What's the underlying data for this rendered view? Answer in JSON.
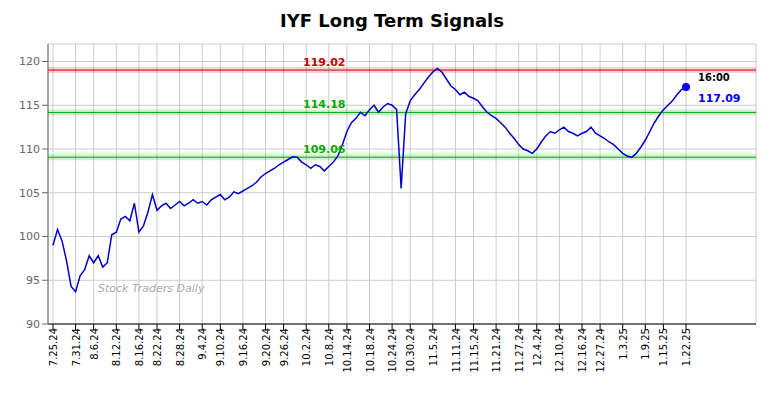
{
  "chart_data": {
    "type": "line",
    "title": "IYF Long Term Signals",
    "color": "#0000cc",
    "grid": true,
    "ylim": [
      90,
      122
    ],
    "yticks": [
      90,
      95,
      100,
      105,
      110,
      115,
      120
    ],
    "categories": [
      "7.25.24",
      null,
      null,
      null,
      null,
      "7.31.24",
      null,
      null,
      null,
      "8.6.24",
      null,
      null,
      null,
      null,
      "8.12.24",
      null,
      null,
      null,
      null,
      "8.16.24",
      null,
      null,
      null,
      "8.22.24",
      null,
      null,
      null,
      null,
      "8.28.24",
      null,
      null,
      null,
      null,
      "9.4.24",
      null,
      null,
      null,
      "9.10.24",
      null,
      null,
      null,
      null,
      "9.16.24",
      null,
      null,
      null,
      null,
      "9.20.24",
      null,
      null,
      null,
      "9.26.24",
      null,
      null,
      null,
      null,
      "10.2.24",
      null,
      null,
      null,
      null,
      "10.8.24",
      null,
      null,
      null,
      "10.14.24",
      null,
      null,
      null,
      null,
      "10.18.24",
      null,
      null,
      null,
      null,
      "10.24.24",
      null,
      null,
      null,
      "10.30.24",
      null,
      null,
      null,
      null,
      "11.5.24",
      null,
      null,
      null,
      null,
      "11.11.24",
      null,
      null,
      null,
      "11.15.24",
      null,
      null,
      null,
      null,
      "11.21.24",
      null,
      null,
      null,
      null,
      "11.27.24",
      null,
      null,
      null,
      "12.4.24",
      null,
      null,
      null,
      null,
      "12.10.24",
      null,
      null,
      null,
      null,
      "12.16.24",
      null,
      null,
      null,
      "12.27.24",
      null,
      null,
      null,
      null,
      "1.3.25",
      null,
      null,
      null,
      null,
      "1.9.25",
      null,
      null,
      null,
      "1.15.25",
      null,
      null,
      null,
      null,
      "1.22.25"
    ],
    "values": [
      99.0,
      100.8,
      99.5,
      97.2,
      94.3,
      93.7,
      95.5,
      96.2,
      97.8,
      97.0,
      97.8,
      96.5,
      97.0,
      100.2,
      100.5,
      102.0,
      102.3,
      101.8,
      103.8,
      100.5,
      101.2,
      102.8,
      104.8,
      103.0,
      103.5,
      103.8,
      103.2,
      103.6,
      104.0,
      103.5,
      103.8,
      104.2,
      103.8,
      104.0,
      103.6,
      104.2,
      104.5,
      104.8,
      104.2,
      104.5,
      105.1,
      104.9,
      105.2,
      105.5,
      105.8,
      106.2,
      106.8,
      107.2,
      107.5,
      107.8,
      108.2,
      108.5,
      108.8,
      109.1,
      109.05,
      108.5,
      108.2,
      107.8,
      108.2,
      108.0,
      107.5,
      108.0,
      108.5,
      109.2,
      110.5,
      112.0,
      113.0,
      113.5,
      114.2,
      113.8,
      114.5,
      115.0,
      114.2,
      114.8,
      115.2,
      115.0,
      114.5,
      105.5,
      114.0,
      115.5,
      116.2,
      116.8,
      117.5,
      118.2,
      118.8,
      119.2,
      118.8,
      118.0,
      117.2,
      116.8,
      116.2,
      116.5,
      116.0,
      115.8,
      115.5,
      114.8,
      114.2,
      113.8,
      113.5,
      113.0,
      112.5,
      111.8,
      111.2,
      110.5,
      110.0,
      109.8,
      109.5,
      110.0,
      110.8,
      111.5,
      112.0,
      111.8,
      112.2,
      112.5,
      112.0,
      111.8,
      111.5,
      111.8,
      112.0,
      112.5,
      111.8,
      111.5,
      111.2,
      110.8,
      110.5,
      110.0,
      109.5,
      109.2,
      109.05,
      109.5,
      110.2,
      111.0,
      112.0,
      113.0,
      113.8,
      114.5,
      115.0,
      115.5,
      116.2,
      116.8,
      117.09
    ],
    "reference_lines": [
      {
        "value": 119.02,
        "label": "119.02",
        "color": "#cc0000"
      },
      {
        "value": 114.18,
        "label": "114.18",
        "color": "#00aa00"
      },
      {
        "value": 109.06,
        "label": "109.06",
        "color": "#00aa00"
      }
    ],
    "last_label": "16:00",
    "last_value_label": "117.09",
    "watermark": "Stock Traders Daily"
  }
}
